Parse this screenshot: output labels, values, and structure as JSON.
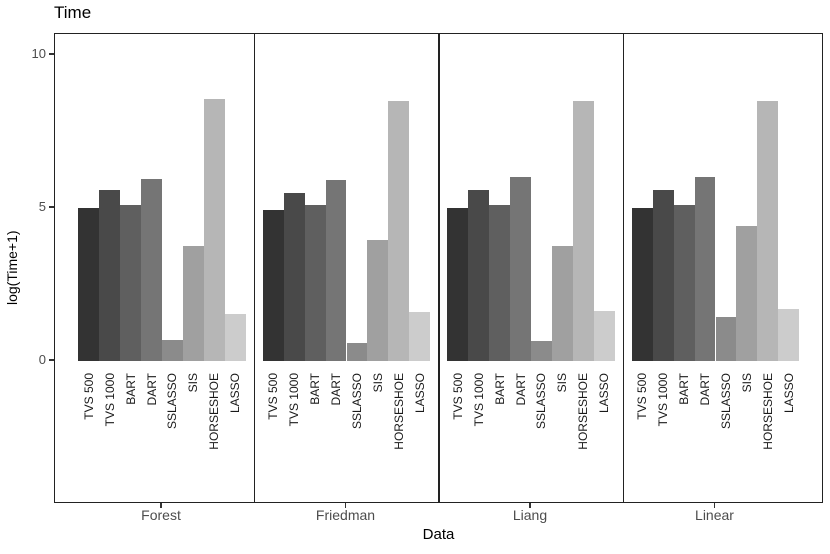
{
  "title": "Time",
  "x_axis": {
    "label": "Data",
    "categories": [
      "Forest",
      "Friedman",
      "Liang",
      "Linear"
    ]
  },
  "y_axis": {
    "label": "log(Time+1)",
    "ticks": [
      "0",
      "5",
      "10"
    ]
  },
  "chart_data": {
    "type": "bar",
    "title": "Time",
    "xlabel": "Data",
    "ylabel": "log(Time+1)",
    "ylim": [
      0,
      10.7
    ],
    "yticks": [
      0,
      5,
      10
    ],
    "grid": false,
    "legend": "none",
    "panel_dividers": true,
    "categories": [
      "Forest",
      "Friedman",
      "Liang",
      "Linear"
    ],
    "series": [
      {
        "name": "TVS 500",
        "color": "#333333",
        "values": [
          5.0,
          4.95,
          5.0,
          5.0
        ]
      },
      {
        "name": "TVS 1000",
        "color": "#494949",
        "values": [
          5.6,
          5.5,
          5.6,
          5.6
        ]
      },
      {
        "name": "BART",
        "color": "#5f5f5f",
        "values": [
          5.1,
          5.1,
          5.1,
          5.1
        ]
      },
      {
        "name": "DART",
        "color": "#757575",
        "values": [
          5.95,
          5.9,
          6.0,
          6.0
        ]
      },
      {
        "name": "SSLASSO",
        "color": "#8b8b8b",
        "values": [
          0.7,
          0.6,
          0.65,
          1.45
        ]
      },
      {
        "name": "SIS",
        "color": "#a0a0a0",
        "values": [
          3.75,
          3.95,
          3.75,
          4.4
        ]
      },
      {
        "name": "HORSESHOE",
        "color": "#b6b6b6",
        "values": [
          8.55,
          8.5,
          8.5,
          8.5
        ]
      },
      {
        "name": "LASSO",
        "color": "#cccccc",
        "values": [
          1.55,
          1.6,
          1.65,
          1.7
        ]
      }
    ]
  }
}
